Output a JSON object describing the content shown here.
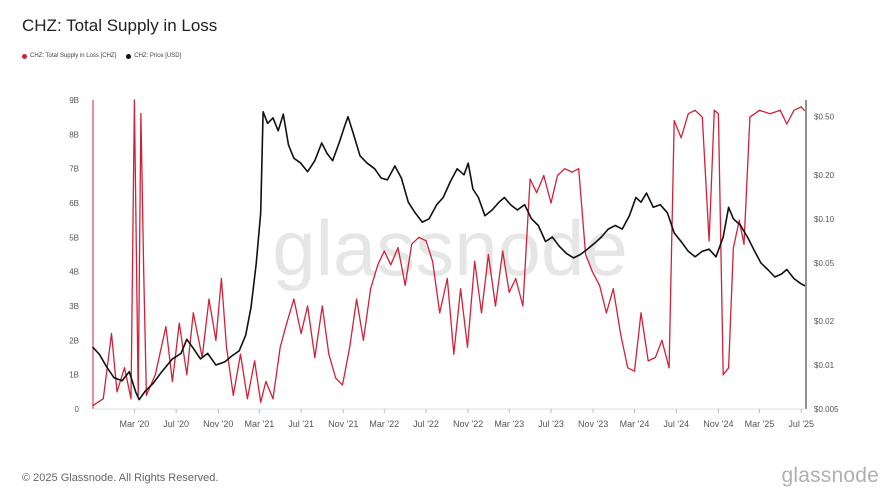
{
  "title": "CHZ: Total Supply in Loss",
  "legend": [
    {
      "label": "CHZ: Total Supply in Loss [CHZ]",
      "color": "#d0213a"
    },
    {
      "label": "CHZ: Price [USD]",
      "color": "#111111"
    }
  ],
  "watermark": "glassnode",
  "footer": "© 2025 Glassnode. All Rights Reserved.",
  "brand": "glassnode",
  "chart_data": {
    "type": "line",
    "x_ticks": [
      "Mar '20",
      "Jul '20",
      "Nov '20",
      "Mar '21",
      "Jul '21",
      "Nov '21",
      "Mar '22",
      "Jul '22",
      "Nov '22",
      "Mar '23",
      "Jul '23",
      "Nov '23",
      "Mar '24",
      "Jul '24",
      "Nov '24",
      "Mar '25",
      "Jul '25"
    ],
    "xlim": [
      "2019-11-01",
      "2025-07-15"
    ],
    "y_left": {
      "ticks": [
        "0",
        "1B",
        "2B",
        "3B",
        "4B",
        "5B",
        "6B",
        "7B",
        "8B",
        "9B"
      ],
      "ylim": [
        0,
        9000000000
      ]
    },
    "y_right": {
      "scale": "log",
      "ticks": [
        "$0.005",
        "$0.01",
        "$0.02",
        "$0.05",
        "$0.10",
        "$0.20",
        "$0.50"
      ],
      "tick_values": [
        0.005,
        0.01,
        0.02,
        0.05,
        0.1,
        0.2,
        0.5
      ],
      "ylim": [
        0.005,
        0.65
      ]
    },
    "series": [
      {
        "name": "CHZ: Total Supply in Loss [CHZ]",
        "axis": "left",
        "color": "#d0213a",
        "points": [
          [
            "2019-11-01",
            100000000.0
          ],
          [
            "2019-12-01",
            300000000.0
          ],
          [
            "2019-12-25",
            2200000000.0
          ],
          [
            "2020-01-10",
            500000000.0
          ],
          [
            "2020-02-01",
            1200000000.0
          ],
          [
            "2020-02-20",
            300000000.0
          ],
          [
            "2020-03-01",
            9000000000.0
          ],
          [
            "2020-03-12",
            400000000.0
          ],
          [
            "2020-03-20",
            8600000000.0
          ],
          [
            "2020-03-28",
            4000000000.0
          ],
          [
            "2020-04-05",
            400000000.0
          ],
          [
            "2020-05-01",
            1000000000.0
          ],
          [
            "2020-06-01",
            2400000000.0
          ],
          [
            "2020-06-20",
            800000000.0
          ],
          [
            "2020-07-10",
            2500000000.0
          ],
          [
            "2020-08-01",
            1000000000.0
          ],
          [
            "2020-08-20",
            2800000000.0
          ],
          [
            "2020-09-15",
            1500000000.0
          ],
          [
            "2020-10-05",
            3200000000.0
          ],
          [
            "2020-10-25",
            2000000000.0
          ],
          [
            "2020-11-10",
            3800000000.0
          ],
          [
            "2020-11-25",
            1800000000.0
          ],
          [
            "2020-12-15",
            400000000.0
          ],
          [
            "2021-01-05",
            1600000000.0
          ],
          [
            "2021-01-25",
            300000000.0
          ],
          [
            "2021-02-15",
            1400000000.0
          ],
          [
            "2021-03-05",
            200000000.0
          ],
          [
            "2021-03-20",
            800000000.0
          ],
          [
            "2021-04-10",
            300000000.0
          ],
          [
            "2021-05-01",
            1800000000.0
          ],
          [
            "2021-05-20",
            2500000000.0
          ],
          [
            "2021-06-10",
            3200000000.0
          ],
          [
            "2021-07-01",
            2200000000.0
          ],
          [
            "2021-07-20",
            3000000000.0
          ],
          [
            "2021-08-10",
            1500000000.0
          ],
          [
            "2021-09-01",
            3000000000.0
          ],
          [
            "2021-09-20",
            1600000000.0
          ],
          [
            "2021-10-10",
            900000000.0
          ],
          [
            "2021-10-30",
            700000000.0
          ],
          [
            "2021-11-20",
            1800000000.0
          ],
          [
            "2021-12-10",
            3200000000.0
          ],
          [
            "2021-12-30",
            2000000000.0
          ],
          [
            "2022-01-20",
            3500000000.0
          ],
          [
            "2022-02-10",
            4200000000.0
          ],
          [
            "2022-03-01",
            4600000000.0
          ],
          [
            "2022-03-20",
            4200000000.0
          ],
          [
            "2022-04-10",
            4700000000.0
          ],
          [
            "2022-05-01",
            3600000000.0
          ],
          [
            "2022-05-20",
            4800000000.0
          ],
          [
            "2022-06-10",
            5000000000.0
          ],
          [
            "2022-07-01",
            4900000000.0
          ],
          [
            "2022-07-20",
            4300000000.0
          ],
          [
            "2022-08-10",
            2800000000.0
          ],
          [
            "2022-09-01",
            3800000000.0
          ],
          [
            "2022-09-20",
            1600000000.0
          ],
          [
            "2022-10-10",
            3500000000.0
          ],
          [
            "2022-10-30",
            1800000000.0
          ],
          [
            "2022-11-20",
            4300000000.0
          ],
          [
            "2022-12-10",
            2800000000.0
          ],
          [
            "2022-12-30",
            4500000000.0
          ],
          [
            "2023-01-20",
            3000000000.0
          ],
          [
            "2023-02-10",
            4600000000.0
          ],
          [
            "2023-03-01",
            3400000000.0
          ],
          [
            "2023-03-20",
            3800000000.0
          ],
          [
            "2023-04-10",
            3000000000.0
          ],
          [
            "2023-05-01",
            6700000000.0
          ],
          [
            "2023-05-20",
            6300000000.0
          ],
          [
            "2023-06-10",
            6800000000.0
          ],
          [
            "2023-07-01",
            6000000000.0
          ],
          [
            "2023-07-20",
            6800000000.0
          ],
          [
            "2023-08-10",
            7000000000.0
          ],
          [
            "2023-09-01",
            6900000000.0
          ],
          [
            "2023-09-20",
            7000000000.0
          ],
          [
            "2023-10-10",
            4500000000.0
          ],
          [
            "2023-10-30",
            4000000000.0
          ],
          [
            "2023-11-20",
            3600000000.0
          ],
          [
            "2023-12-10",
            2800000000.0
          ],
          [
            "2023-12-30",
            3500000000.0
          ],
          [
            "2024-01-20",
            2200000000.0
          ],
          [
            "2024-02-10",
            1200000000.0
          ],
          [
            "2024-03-01",
            1100000000.0
          ],
          [
            "2024-03-20",
            2800000000.0
          ],
          [
            "2024-04-10",
            1400000000.0
          ],
          [
            "2024-05-01",
            1500000000.0
          ],
          [
            "2024-05-20",
            2000000000.0
          ],
          [
            "2024-06-10",
            1200000000.0
          ],
          [
            "2024-06-25",
            8400000000.0
          ],
          [
            "2024-07-15",
            7900000000.0
          ],
          [
            "2024-08-05",
            8600000000.0
          ],
          [
            "2024-08-25",
            8700000000.0
          ],
          [
            "2024-09-15",
            8500000000.0
          ],
          [
            "2024-10-05",
            4900000000.0
          ],
          [
            "2024-10-20",
            8700000000.0
          ],
          [
            "2024-11-01",
            8600000000.0
          ],
          [
            "2024-11-15",
            1000000000.0
          ],
          [
            "2024-12-01",
            1200000000.0
          ],
          [
            "2024-12-15",
            4700000000.0
          ],
          [
            "2025-01-01",
            5500000000.0
          ],
          [
            "2025-01-15",
            4800000000.0
          ],
          [
            "2025-02-01",
            8500000000.0
          ],
          [
            "2025-03-01",
            8700000000.0
          ],
          [
            "2025-04-01",
            8600000000.0
          ],
          [
            "2025-05-01",
            8700000000.0
          ],
          [
            "2025-05-20",
            8300000000.0
          ],
          [
            "2025-06-10",
            8700000000.0
          ],
          [
            "2025-07-01",
            8800000000.0
          ],
          [
            "2025-07-10",
            8700000000.0
          ]
        ]
      },
      {
        "name": "CHZ: Price [USD]",
        "axis": "right",
        "color": "#111111",
        "points": [
          [
            "2019-11-01",
            0.0132
          ],
          [
            "2019-11-20",
            0.0118
          ],
          [
            "2019-12-10",
            0.0098
          ],
          [
            "2020-01-01",
            0.0082
          ],
          [
            "2020-01-25",
            0.0078
          ],
          [
            "2020-02-15",
            0.009
          ],
          [
            "2020-03-05",
            0.0065
          ],
          [
            "2020-03-15",
            0.0058
          ],
          [
            "2020-04-01",
            0.0066
          ],
          [
            "2020-04-25",
            0.0075
          ],
          [
            "2020-05-20",
            0.009
          ],
          [
            "2020-06-20",
            0.011
          ],
          [
            "2020-07-15",
            0.012
          ],
          [
            "2020-08-01",
            0.015
          ],
          [
            "2020-08-20",
            0.013
          ],
          [
            "2020-09-10",
            0.011
          ],
          [
            "2020-10-01",
            0.012
          ],
          [
            "2020-10-25",
            0.01
          ],
          [
            "2020-11-20",
            0.0105
          ],
          [
            "2020-12-10",
            0.0115
          ],
          [
            "2021-01-01",
            0.0125
          ],
          [
            "2021-01-20",
            0.016
          ],
          [
            "2021-02-05",
            0.025
          ],
          [
            "2021-02-20",
            0.05
          ],
          [
            "2021-03-05",
            0.11
          ],
          [
            "2021-03-12",
            0.54
          ],
          [
            "2021-03-25",
            0.45
          ],
          [
            "2021-04-10",
            0.49
          ],
          [
            "2021-04-25",
            0.4
          ],
          [
            "2021-05-10",
            0.52
          ],
          [
            "2021-05-25",
            0.32
          ],
          [
            "2021-06-10",
            0.26
          ],
          [
            "2021-06-30",
            0.24
          ],
          [
            "2021-07-20",
            0.21
          ],
          [
            "2021-08-10",
            0.25
          ],
          [
            "2021-08-30",
            0.33
          ],
          [
            "2021-09-15",
            0.28
          ],
          [
            "2021-10-01",
            0.25
          ],
          [
            "2021-10-20",
            0.33
          ],
          [
            "2021-11-05",
            0.43
          ],
          [
            "2021-11-15",
            0.5
          ],
          [
            "2021-12-01",
            0.38
          ],
          [
            "2021-12-20",
            0.27
          ],
          [
            "2022-01-10",
            0.24
          ],
          [
            "2022-02-01",
            0.22
          ],
          [
            "2022-02-20",
            0.19
          ],
          [
            "2022-03-10",
            0.185
          ],
          [
            "2022-04-01",
            0.23
          ],
          [
            "2022-04-20",
            0.19
          ],
          [
            "2022-05-10",
            0.13
          ],
          [
            "2022-05-30",
            0.11
          ],
          [
            "2022-06-20",
            0.095
          ],
          [
            "2022-07-10",
            0.1
          ],
          [
            "2022-08-01",
            0.125
          ],
          [
            "2022-08-20",
            0.14
          ],
          [
            "2022-09-10",
            0.18
          ],
          [
            "2022-09-30",
            0.22
          ],
          [
            "2022-10-20",
            0.2
          ],
          [
            "2022-11-01",
            0.24
          ],
          [
            "2022-11-15",
            0.16
          ],
          [
            "2022-12-01",
            0.14
          ],
          [
            "2022-12-20",
            0.105
          ],
          [
            "2023-01-10",
            0.115
          ],
          [
            "2023-01-30",
            0.13
          ],
          [
            "2023-02-15",
            0.14
          ],
          [
            "2023-03-05",
            0.125
          ],
          [
            "2023-03-25",
            0.115
          ],
          [
            "2023-04-15",
            0.125
          ],
          [
            "2023-05-05",
            0.1
          ],
          [
            "2023-05-25",
            0.09
          ],
          [
            "2023-06-15",
            0.07
          ],
          [
            "2023-07-05",
            0.075
          ],
          [
            "2023-07-25",
            0.065
          ],
          [
            "2023-08-15",
            0.058
          ],
          [
            "2023-09-05",
            0.054
          ],
          [
            "2023-09-25",
            0.057
          ],
          [
            "2023-10-15",
            0.062
          ],
          [
            "2023-11-05",
            0.068
          ],
          [
            "2023-11-25",
            0.075
          ],
          [
            "2023-12-15",
            0.085
          ],
          [
            "2024-01-05",
            0.09
          ],
          [
            "2024-01-25",
            0.085
          ],
          [
            "2024-02-15",
            0.105
          ],
          [
            "2024-03-05",
            0.14
          ],
          [
            "2024-03-20",
            0.13
          ],
          [
            "2024-04-05",
            0.15
          ],
          [
            "2024-04-25",
            0.12
          ],
          [
            "2024-05-15",
            0.125
          ],
          [
            "2024-06-05",
            0.11
          ],
          [
            "2024-06-25",
            0.08
          ],
          [
            "2024-07-15",
            0.07
          ],
          [
            "2024-08-05",
            0.06
          ],
          [
            "2024-08-25",
            0.055
          ],
          [
            "2024-09-15",
            0.06
          ],
          [
            "2024-10-05",
            0.062
          ],
          [
            "2024-10-25",
            0.055
          ],
          [
            "2024-11-15",
            0.075
          ],
          [
            "2024-12-01",
            0.12
          ],
          [
            "2024-12-15",
            0.1
          ],
          [
            "2025-01-05",
            0.09
          ],
          [
            "2025-01-25",
            0.075
          ],
          [
            "2025-02-15",
            0.06
          ],
          [
            "2025-03-05",
            0.05
          ],
          [
            "2025-03-25",
            0.045
          ],
          [
            "2025-04-15",
            0.04
          ],
          [
            "2025-05-05",
            0.042
          ],
          [
            "2025-05-20",
            0.045
          ],
          [
            "2025-06-10",
            0.039
          ],
          [
            "2025-06-30",
            0.036
          ],
          [
            "2025-07-10",
            0.035
          ]
        ]
      }
    ]
  }
}
